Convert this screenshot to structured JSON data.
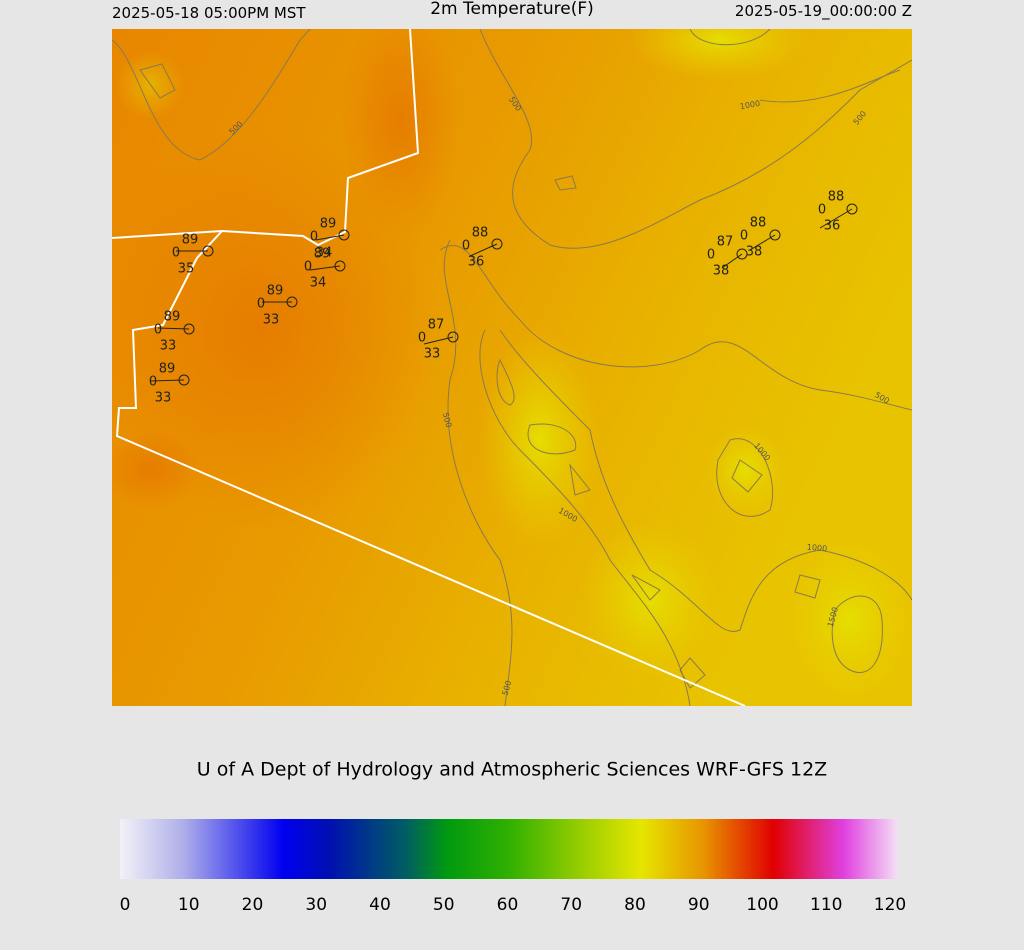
{
  "header": {
    "left": "2025-05-18 05:00PM MST",
    "title": "2m Temperature(F)",
    "right": "2025-05-19_00:00:00 Z"
  },
  "map": {
    "stations": [
      {
        "temp": 89,
        "cloud": 0,
        "dewpoint": 35
      },
      {
        "temp": 89,
        "cloud": 0,
        "dewpoint": 34
      },
      {
        "temp": 89,
        "cloud": 0,
        "dewpoint": 34
      },
      {
        "temp": 89,
        "cloud": 0,
        "dewpoint": 33
      },
      {
        "temp": 89,
        "cloud": 0,
        "dewpoint": 33
      },
      {
        "temp": 89,
        "cloud": 0,
        "dewpoint": 33
      },
      {
        "temp": 88,
        "cloud": 0,
        "dewpoint": 36
      },
      {
        "temp": 87,
        "cloud": 0,
        "dewpoint": 33
      },
      {
        "temp": 87,
        "cloud": 0,
        "dewpoint": 38
      },
      {
        "temp": 88,
        "cloud": 0,
        "dewpoint": 38
      },
      {
        "temp": 88,
        "cloud": 0,
        "dewpoint": 36
      }
    ],
    "contour_labels": [
      500,
      1000,
      500,
      500,
      500,
      500,
      1000,
      1000,
      1000,
      1500,
      500
    ]
  },
  "footer": "U of A Dept of Hydrology and Atmospheric Sciences WRF-GFS 12Z",
  "colorbar": {
    "lim": [
      0,
      120
    ],
    "ticks": [
      0,
      10,
      20,
      30,
      40,
      50,
      60,
      70,
      80,
      90,
      100,
      110,
      120
    ]
  }
}
